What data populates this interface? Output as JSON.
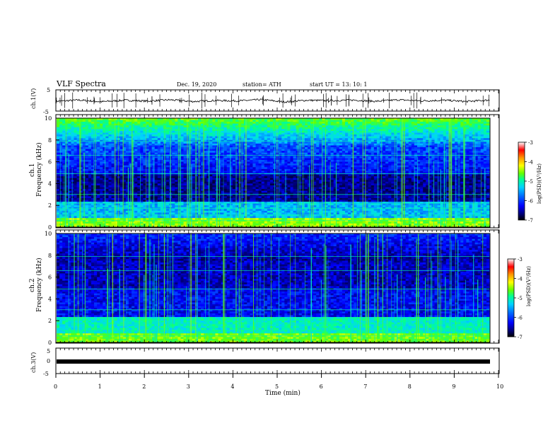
{
  "header": {
    "title": "VLF Spectra",
    "date": "Dec. 19, 2020",
    "station": "station= ATH",
    "start_ut": "start  UT  =   13: 10: 1"
  },
  "chart_data": [
    {
      "type": "line",
      "ylabel": "ch.1(V)",
      "ylim": [
        -5,
        5
      ],
      "yticks": [
        5,
        -5
      ],
      "xlim": [
        0,
        10
      ],
      "series": [
        {
          "values": [
            -0.4,
            0.2,
            -0.6,
            0.1,
            -0.3,
            0.3,
            -0.5,
            0.0,
            -0.2,
            0.4,
            -0.7,
            0.1,
            -0.1,
            0.2,
            -0.4,
            0.3,
            -0.2,
            0.1,
            -0.5,
            0.2
          ]
        }
      ]
    },
    {
      "type": "heatmap",
      "ylabel_top": "ch.1",
      "ylabel": "Frequency (kHz)",
      "ylim": [
        0,
        10
      ],
      "yticks": [
        0,
        2,
        4,
        6,
        8,
        10
      ],
      "xlim": [
        0,
        10
      ],
      "colorbar": {
        "label": "log(PSD)(V²/Hz)",
        "range": [
          -7,
          -3
        ],
        "ticks": [
          -3,
          -4,
          -5,
          -6,
          -7
        ]
      }
    },
    {
      "type": "heatmap",
      "ylabel_top": "ch.2",
      "ylabel": "Frequency (kHz)",
      "ylim": [
        0,
        10
      ],
      "yticks": [
        0,
        2,
        4,
        6,
        8,
        10
      ],
      "xlim": [
        0,
        10
      ],
      "colorbar": {
        "label": "log(PSD)(V²/Hz)",
        "range": [
          -7,
          -3
        ],
        "ticks": [
          -3,
          -4,
          -5,
          -6,
          -7
        ]
      }
    },
    {
      "type": "line",
      "ylabel": "ch.3(V)",
      "ylim": [
        -5,
        5
      ],
      "yticks": [
        5,
        0,
        -5
      ],
      "xlim": [
        0,
        10
      ],
      "xlabel": "Time (min)",
      "xticks": [
        0,
        1,
        2,
        3,
        4,
        5,
        6,
        7,
        8,
        9,
        10
      ],
      "series": [
        {
          "values": [
            0,
            0
          ]
        }
      ]
    }
  ],
  "colors": {
    "colormap": [
      "#000000",
      "#00007a",
      "#0000ff",
      "#0064ff",
      "#00d2ff",
      "#00ff96",
      "#64ff00",
      "#ffff00",
      "#ff9600",
      "#ff0000",
      "#ffffff"
    ]
  }
}
